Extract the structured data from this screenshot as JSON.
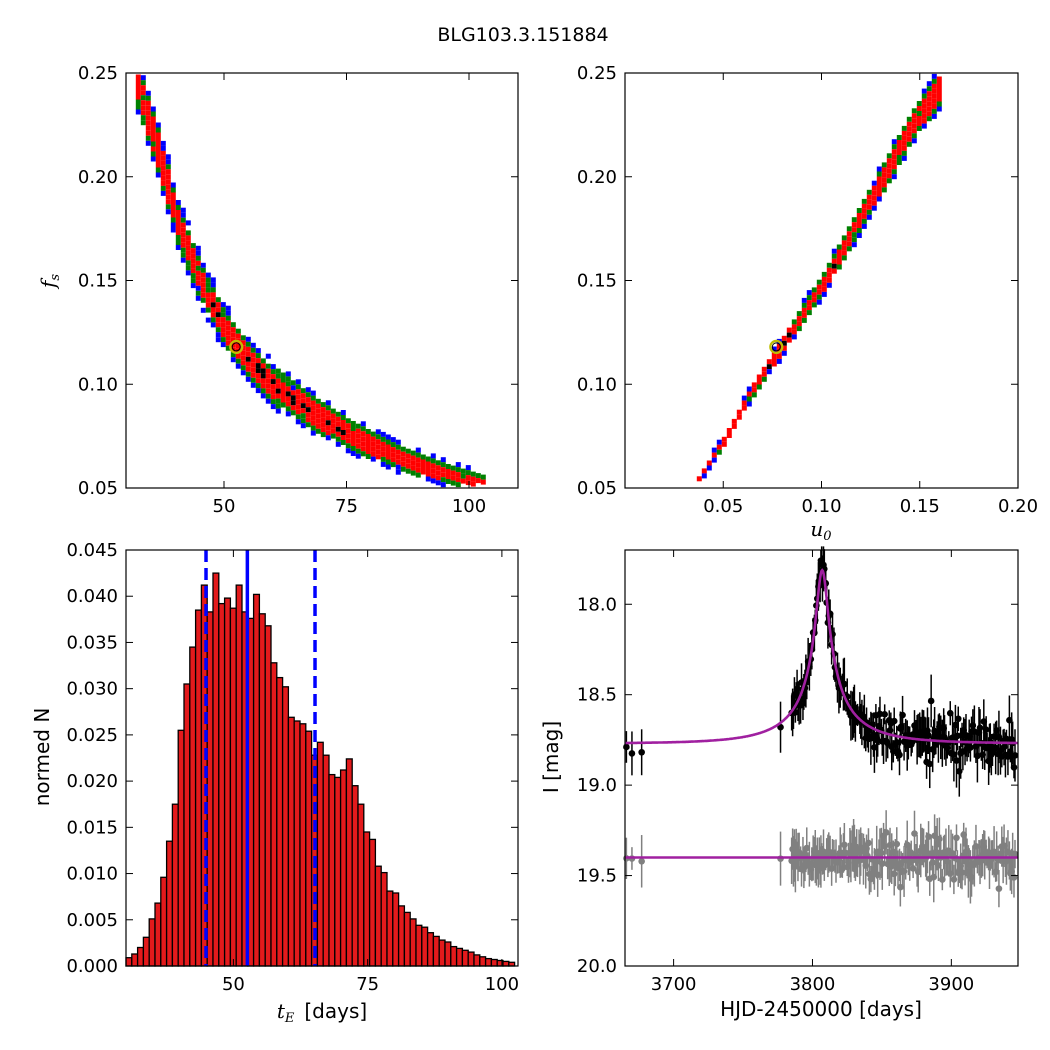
{
  "title": "BLG103.3.151884",
  "colors": {
    "blue": "#0000ff",
    "green": "#008000",
    "red": "#ff0000",
    "black": "#000000",
    "marker_edge": "#bfbf00",
    "model": "#a020a0",
    "gray": "#808080",
    "hist_fill": "#e31a1c"
  },
  "chart_data": [
    {
      "id": "te_fs",
      "type": "heatmap",
      "xlabel": "",
      "ylabel": "f_s",
      "xlim": [
        30,
        110
      ],
      "ylim": [
        0.05,
        0.25
      ],
      "xticks": [
        50,
        75,
        100
      ],
      "yticks": [
        0.05,
        0.1,
        0.15,
        0.2,
        0.25
      ],
      "xticklabels": [
        "50",
        "75",
        "100"
      ],
      "yticklabels": [
        "0.05",
        "0.10",
        "0.15",
        "0.20",
        "0.25"
      ],
      "levels": [
        "blue",
        "green",
        "red",
        "black"
      ],
      "ridge": [
        [
          32,
          0.245
        ],
        [
          36,
          0.215
        ],
        [
          40,
          0.18
        ],
        [
          45,
          0.15
        ],
        [
          50,
          0.127
        ],
        [
          55,
          0.112
        ],
        [
          60,
          0.1
        ],
        [
          67,
          0.088
        ],
        [
          75,
          0.077
        ],
        [
          85,
          0.066
        ],
        [
          95,
          0.058
        ],
        [
          103,
          0.053
        ]
      ],
      "best_fit": {
        "x": 52.5,
        "y": 0.118
      }
    },
    {
      "id": "u0_fs",
      "type": "heatmap",
      "xlabel": "u_0",
      "ylabel": "",
      "xlim": [
        0.0,
        0.2
      ],
      "ylim": [
        0.05,
        0.25
      ],
      "xticks": [
        0.05,
        0.1,
        0.15,
        0.2
      ],
      "yticks": [
        0.05,
        0.1,
        0.15,
        0.2,
        0.25
      ],
      "xticklabels": [
        "0.05",
        "0.10",
        "0.15",
        "0.20"
      ],
      "yticklabels": [
        "0.05",
        "0.10",
        "0.15",
        "0.20",
        "0.25"
      ],
      "levels": [
        "blue",
        "green",
        "red",
        "black"
      ],
      "ridge": [
        [
          0.034,
          0.052
        ],
        [
          0.05,
          0.075
        ],
        [
          0.065,
          0.1
        ],
        [
          0.078,
          0.118
        ],
        [
          0.09,
          0.136
        ],
        [
          0.1,
          0.15
        ],
        [
          0.115,
          0.175
        ],
        [
          0.13,
          0.2
        ],
        [
          0.145,
          0.225
        ],
        [
          0.16,
          0.245
        ]
      ],
      "best_fit": {
        "x": 0.077,
        "y": 0.118
      }
    },
    {
      "id": "te_hist",
      "type": "bar",
      "xlabel_math": "t_E",
      "xlabel_text": "[days]",
      "ylabel": "normed N",
      "xlim": [
        30,
        103
      ],
      "ylim": [
        0.0,
        0.045
      ],
      "xticks": [
        50,
        75,
        100
      ],
      "yticks": [
        0.0,
        0.005,
        0.01,
        0.015,
        0.02,
        0.025,
        0.03,
        0.035,
        0.04,
        0.045
      ],
      "xticklabels": [
        "50",
        "75",
        "100"
      ],
      "yticklabels": [
        "0.000",
        "0.005",
        "0.010",
        "0.015",
        "0.020",
        "0.025",
        "0.030",
        "0.035",
        "0.040",
        "0.045"
      ],
      "bin_start": 30,
      "bin_width": 1.08,
      "values": [
        0.0009,
        0.0013,
        0.002,
        0.0031,
        0.0051,
        0.0068,
        0.0096,
        0.0135,
        0.0175,
        0.0255,
        0.0305,
        0.0345,
        0.0385,
        0.0412,
        0.0383,
        0.0425,
        0.0392,
        0.0398,
        0.0387,
        0.0412,
        0.0383,
        0.0376,
        0.0402,
        0.0381,
        0.0368,
        0.0328,
        0.0312,
        0.0302,
        0.0269,
        0.0265,
        0.0262,
        0.0254,
        0.0228,
        0.0242,
        0.0228,
        0.0207,
        0.0204,
        0.0212,
        0.0224,
        0.0195,
        0.0175,
        0.0145,
        0.0137,
        0.0108,
        0.0101,
        0.0081,
        0.0079,
        0.0065,
        0.0058,
        0.0051,
        0.0044,
        0.0042,
        0.0036,
        0.0032,
        0.0028,
        0.0026,
        0.0021,
        0.0019,
        0.0017,
        0.0015,
        0.0012,
        0.001,
        0.0008,
        0.0007,
        0.0006,
        0.0005,
        0.0004
      ],
      "vlines": [
        {
          "x": 52.6,
          "style": "solid",
          "color": "#0000ff"
        },
        {
          "x": 44.9,
          "style": "dashed",
          "color": "#0000ff"
        },
        {
          "x": 65.2,
          "style": "dashed",
          "color": "#0000ff"
        }
      ]
    },
    {
      "id": "lightcurve",
      "type": "scatter",
      "xlabel": "HJD-2450000 [days]",
      "ylabel": "I [mag]",
      "xlim": [
        3665,
        3948
      ],
      "ylim": [
        20.0,
        17.7
      ],
      "xticks": [
        3700,
        3800,
        3900
      ],
      "yticks": [
        18.0,
        18.5,
        19.0,
        19.5,
        20.0
      ],
      "xticklabels": [
        "3700",
        "3800",
        "3900"
      ],
      "yticklabels": [
        "18.0",
        "18.5",
        "19.0",
        "19.5",
        "20.0"
      ],
      "series": [
        {
          "color": "black",
          "model_color": "model",
          "baseline": 18.77,
          "peak_mag": 17.82,
          "t0": 3807,
          "u0": 0.077,
          "tE": 52.5,
          "fs": 0.118
        },
        {
          "color": "gray",
          "model_color": "model",
          "baseline": 19.4
        }
      ]
    }
  ]
}
